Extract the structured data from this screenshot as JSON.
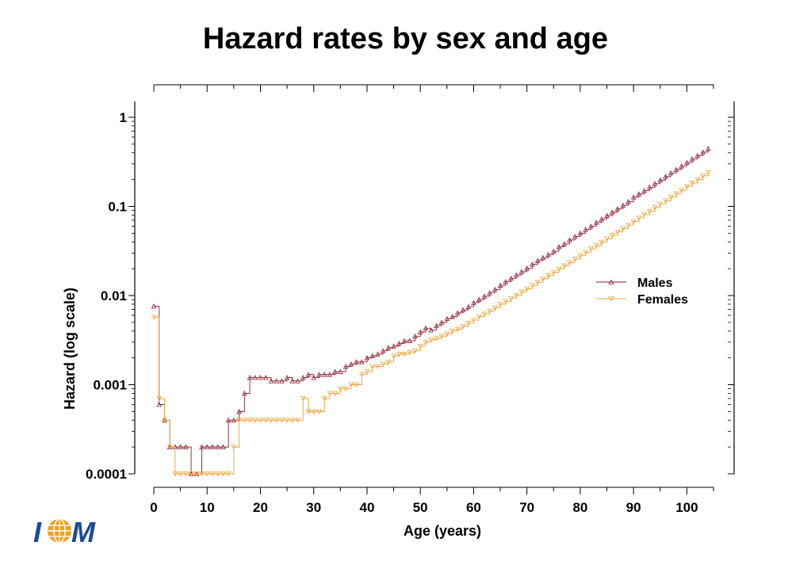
{
  "slide": {
    "title": "Hazard rates by sex and age"
  },
  "logo": {
    "text_left": "I",
    "text_right": "M"
  },
  "chart_data": {
    "type": "line",
    "title": "Hazard rates by sex and age",
    "xlabel": "Age (years)",
    "ylabel": "Hazard (log scale)",
    "x_scale": "linear",
    "y_scale": "log",
    "xlim": [
      0,
      105
    ],
    "ylim": [
      0.0001,
      1
    ],
    "x_ticks": [
      0,
      10,
      20,
      30,
      40,
      50,
      60,
      70,
      80,
      90,
      100
    ],
    "x_tick_labels": [
      "0",
      "10",
      "20",
      "30",
      "40",
      "50",
      "60",
      "70",
      "80",
      "90",
      "100"
    ],
    "y_ticks": [
      0.0001,
      0.001,
      0.01,
      0.1,
      1
    ],
    "y_tick_labels": [
      "0.0001",
      "0.001",
      "0.01",
      "0.1",
      "1"
    ],
    "legend": "right",
    "grid": false,
    "colors": {
      "Males": "#8b1a2b",
      "Females": "#f0a030",
      "logo_blue": "#1a4a9a",
      "logo_orange": "#f0a020"
    },
    "series": [
      {
        "name": "Males",
        "marker": "triangle-up",
        "x": [
          0,
          1,
          2,
          3,
          4,
          5,
          6,
          7,
          8,
          9,
          10,
          11,
          12,
          13,
          14,
          15,
          16,
          17,
          18,
          19,
          20,
          21,
          22,
          23,
          24,
          25,
          26,
          27,
          28,
          29,
          30,
          31,
          32,
          33,
          34,
          35,
          36,
          37,
          38,
          39,
          40,
          41,
          42,
          43,
          44,
          45,
          46,
          47,
          48,
          49,
          50,
          51,
          52,
          53,
          54,
          55,
          56,
          57,
          58,
          59,
          60,
          61,
          62,
          63,
          64,
          65,
          66,
          67,
          68,
          69,
          70,
          71,
          72,
          73,
          74,
          75,
          76,
          77,
          78,
          79,
          80,
          81,
          82,
          83,
          84,
          85,
          86,
          87,
          88,
          89,
          90,
          91,
          92,
          93,
          94,
          95,
          96,
          97,
          98,
          99,
          100,
          101,
          102,
          103,
          104
        ],
        "y": [
          0.0076,
          0.0006,
          0.0004,
          0.0002,
          0.0002,
          0.0002,
          0.0002,
          0.0001,
          0.0001,
          0.0002,
          0.0002,
          0.0002,
          0.0002,
          0.0002,
          0.0004,
          0.0004,
          0.0005,
          0.0008,
          0.0012,
          0.0012,
          0.0012,
          0.0012,
          0.0011,
          0.0011,
          0.0011,
          0.0012,
          0.0011,
          0.0011,
          0.0012,
          0.0013,
          0.0012,
          0.0013,
          0.0013,
          0.0013,
          0.0014,
          0.0014,
          0.0016,
          0.0017,
          0.0018,
          0.0018,
          0.002,
          0.0021,
          0.0022,
          0.0024,
          0.0026,
          0.0027,
          0.0029,
          0.0031,
          0.0031,
          0.0035,
          0.0039,
          0.0043,
          0.0041,
          0.0046,
          0.005,
          0.0055,
          0.0058,
          0.0064,
          0.0069,
          0.0075,
          0.0083,
          0.009,
          0.0098,
          0.0107,
          0.0117,
          0.013,
          0.0143,
          0.0156,
          0.017,
          0.0185,
          0.0202,
          0.0224,
          0.0246,
          0.0266,
          0.0288,
          0.0314,
          0.0352,
          0.038,
          0.042,
          0.046,
          0.05,
          0.055,
          0.06,
          0.066,
          0.072,
          0.079,
          0.086,
          0.094,
          0.103,
          0.113,
          0.127,
          0.138,
          0.15,
          0.164,
          0.18,
          0.197,
          0.216,
          0.237,
          0.259,
          0.283,
          0.31,
          0.34,
          0.372,
          0.407,
          0.445
        ],
        "legend_label": "Males"
      },
      {
        "name": "Females",
        "marker": "triangle-down",
        "x": [
          0,
          1,
          2,
          3,
          4,
          5,
          6,
          7,
          8,
          9,
          10,
          11,
          12,
          13,
          14,
          15,
          16,
          17,
          18,
          19,
          20,
          21,
          22,
          23,
          24,
          25,
          26,
          27,
          28,
          29,
          30,
          31,
          32,
          33,
          34,
          35,
          36,
          37,
          38,
          39,
          40,
          41,
          42,
          43,
          44,
          45,
          46,
          47,
          48,
          49,
          50,
          51,
          52,
          53,
          54,
          55,
          56,
          57,
          58,
          59,
          60,
          61,
          62,
          63,
          64,
          65,
          66,
          67,
          68,
          69,
          70,
          71,
          72,
          73,
          74,
          75,
          76,
          77,
          78,
          79,
          80,
          81,
          82,
          83,
          84,
          85,
          86,
          87,
          88,
          89,
          90,
          91,
          92,
          93,
          94,
          95,
          96,
          97,
          98,
          99,
          100,
          101,
          102,
          103,
          104
        ],
        "y": [
          0.0057,
          0.0007,
          0.0004,
          0.0002,
          0.0001,
          0.0001,
          0.0001,
          0.0001,
          0.0001,
          0.0001,
          0.0001,
          0.0001,
          0.0001,
          0.0001,
          0.0001,
          0.0002,
          0.0004,
          0.0004,
          0.0004,
          0.0004,
          0.0004,
          0.0004,
          0.0004,
          0.0004,
          0.0004,
          0.0004,
          0.0004,
          0.0004,
          0.0007,
          0.0005,
          0.0005,
          0.0005,
          0.0007,
          0.0008,
          0.0008,
          0.0009,
          0.0009,
          0.001,
          0.001,
          0.0013,
          0.0014,
          0.0016,
          0.0016,
          0.0017,
          0.0018,
          0.0021,
          0.0022,
          0.0022,
          0.0023,
          0.0024,
          0.0027,
          0.003,
          0.0032,
          0.0033,
          0.0035,
          0.0037,
          0.004,
          0.0042,
          0.0045,
          0.0049,
          0.0053,
          0.0058,
          0.0062,
          0.0067,
          0.0073,
          0.008,
          0.0086,
          0.0093,
          0.0101,
          0.011,
          0.0119,
          0.013,
          0.0141,
          0.0154,
          0.0167,
          0.0182,
          0.0199,
          0.0216,
          0.0235,
          0.0256,
          0.028,
          0.0305,
          0.0334,
          0.0364,
          0.0398,
          0.0434,
          0.0474,
          0.0518,
          0.0566,
          0.0618,
          0.0676,
          0.074,
          0.081,
          0.088,
          0.097,
          0.106,
          0.116,
          0.127,
          0.139,
          0.152,
          0.167,
          0.183,
          0.2,
          0.22,
          0.24
        ],
        "legend_label": "Females"
      }
    ]
  }
}
